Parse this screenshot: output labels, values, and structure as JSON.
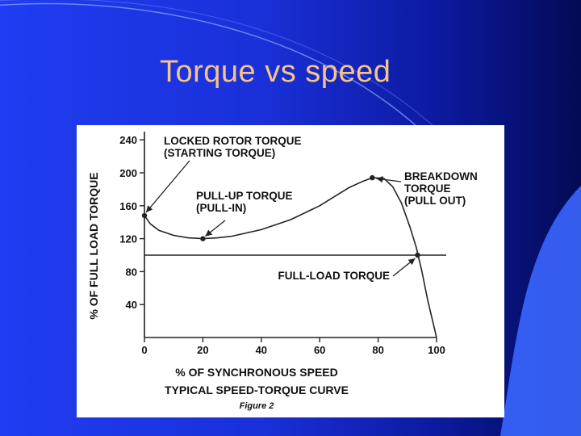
{
  "slide": {
    "title": "Torque vs speed"
  },
  "colors": {
    "background": "#1f3df2",
    "title": "#f6c48a",
    "chart_ink": "#222222"
  },
  "chart_data": {
    "type": "line",
    "title": "TYPICAL SPEED-TORQUE CURVE",
    "subtitle": "Figure 2",
    "xlabel": "% OF SYNCHRONOUS SPEED",
    "ylabel": "% OF FULL LOAD TORQUE",
    "xlim": [
      0,
      100
    ],
    "ylim": [
      0,
      250
    ],
    "x_ticks": [
      "0",
      "20",
      "40",
      "60",
      "80",
      "100"
    ],
    "y_ticks": [
      "40",
      "80",
      "120",
      "160",
      "200",
      "240"
    ],
    "grid": false,
    "series": [
      {
        "x": [
          0,
          2,
          5,
          10,
          15,
          20,
          25,
          30,
          40,
          50,
          60,
          65,
          70,
          75,
          78,
          82,
          85,
          88,
          91,
          93,
          95,
          97,
          100
        ],
        "y": [
          148,
          138,
          130,
          124,
          121,
          120,
          121,
          123,
          131,
          143,
          160,
          171,
          182,
          190,
          194,
          193,
          183,
          163,
          133,
          110,
          80,
          45,
          0
        ]
      }
    ],
    "reference_line": {
      "y": 100,
      "label": "FULL-LOAD TORQUE"
    },
    "points": [
      {
        "x": 0,
        "y": 148
      },
      {
        "x": 20,
        "y": 120
      },
      {
        "x": 78,
        "y": 194
      },
      {
        "x": 93.5,
        "y": 100
      }
    ],
    "annotations": [
      {
        "lines": [
          "LOCKED ROTOR TORQUE",
          "(STARTING TORQUE)"
        ]
      },
      {
        "lines": [
          "PULL-UP TORQUE",
          "(PULL-IN)"
        ]
      },
      {
        "lines": [
          "BREAKDOWN",
          "TORQUE",
          "(PULL OUT)"
        ]
      },
      {
        "lines": [
          "FULL-LOAD TORQUE"
        ]
      }
    ]
  }
}
